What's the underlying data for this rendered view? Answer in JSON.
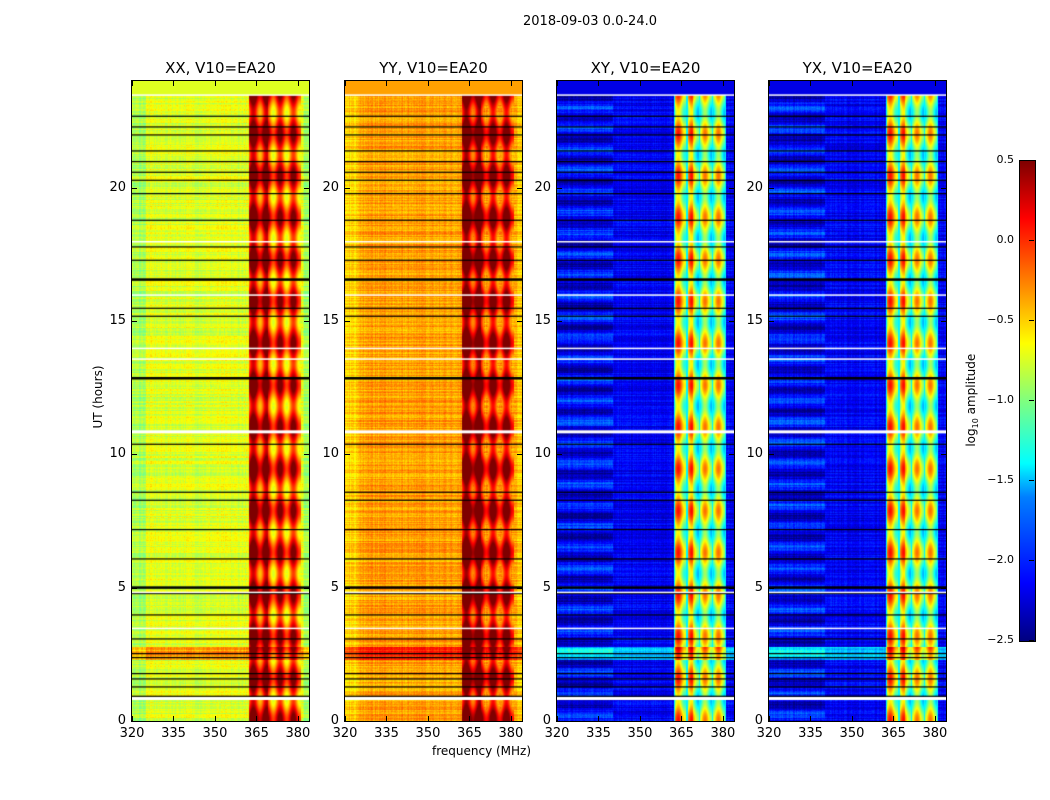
{
  "chart_data": {
    "type": "heatmap",
    "title": "2018-09-03 0.0-24.0",
    "xlabel": "frequency (MHz)",
    "ylabel": "UT (hours)",
    "xlim": [
      320,
      384
    ],
    "ylim": [
      0,
      24
    ],
    "xticks": [
      320,
      335,
      350,
      365,
      380
    ],
    "yticks": [
      0,
      5,
      10,
      15,
      20
    ],
    "colorbar": {
      "label_prefix": "log",
      "label_sub": "10",
      "label_suffix": " amplitude",
      "ticks": [
        "0.5",
        "0.0",
        "−0.5",
        "−1.0",
        "−1.5",
        "−2.0",
        "−2.5"
      ],
      "range": [
        -2.5,
        0.5
      ],
      "colormap": "jet"
    },
    "panels": [
      {
        "title": "XX, V10=EA20",
        "base": -0.72,
        "band": -0.05
      },
      {
        "title": "YY, V10=EA20",
        "base": -0.35,
        "band": 0.1
      },
      {
        "title": "XY, V10=EA20",
        "base": -2.15,
        "band": -0.9
      },
      {
        "title": "YX, V10=EA20",
        "base": -2.15,
        "band": -0.9
      }
    ],
    "rfi_band_mhz": [
      362,
      381
    ],
    "flagged_black_hours": [
      0.95,
      1.3,
      1.6,
      1.8,
      2.4,
      2.55,
      3.1,
      4.0,
      4.8,
      5.05,
      6.1,
      7.2,
      8.3,
      8.6,
      10.4,
      12.9,
      15.2,
      15.5,
      16.6,
      17.3,
      17.8,
      18.8,
      19.8,
      20.3,
      20.6,
      21.0,
      21.4,
      22.0,
      22.3,
      22.7
    ],
    "flagged_white_hours": [
      0.9,
      3.5,
      4.85,
      10.9,
      13.6,
      14.0,
      16.0,
      18.0,
      23.5
    ]
  }
}
